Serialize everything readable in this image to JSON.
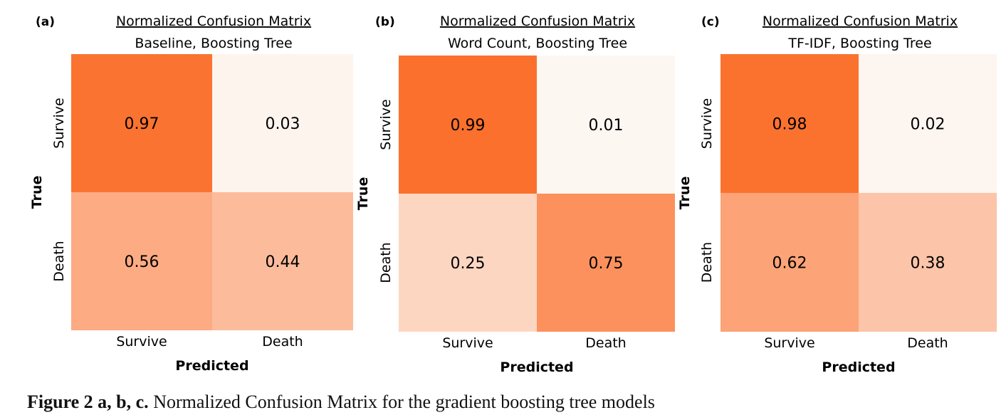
{
  "chart_data": [
    {
      "type": "heatmap",
      "panel": "(a)",
      "title": "Normalized Confusion Matrix",
      "subtitle": "Baseline, Boosting Tree",
      "xlabel": "Predicted",
      "ylabel": "True",
      "x_categories": [
        "Survive",
        "Death"
      ],
      "y_categories": [
        "Survive",
        "Death"
      ],
      "values": [
        [
          0.97,
          0.03
        ],
        [
          0.56,
          0.44
        ]
      ]
    },
    {
      "type": "heatmap",
      "panel": "(b)",
      "title": "Normalized Confusion Matrix",
      "subtitle": "Word Count, Boosting Tree",
      "xlabel": "Predicted",
      "ylabel": "True",
      "x_categories": [
        "Survive",
        "Death"
      ],
      "y_categories": [
        "Survive",
        "Death"
      ],
      "values": [
        [
          0.99,
          0.01
        ],
        [
          0.25,
          0.75
        ]
      ]
    },
    {
      "type": "heatmap",
      "panel": "(c)",
      "title": "Normalized Confusion Matrix",
      "subtitle": "TF-IDF, Boosting Tree",
      "xlabel": "Predicted",
      "ylabel": "True",
      "x_categories": [
        "Survive",
        "Death"
      ],
      "y_categories": [
        "Survive",
        "Death"
      ],
      "values": [
        [
          0.98,
          0.02
        ],
        [
          0.62,
          0.38
        ]
      ]
    }
  ],
  "colors": {
    "low": "#fdf8f4",
    "high": "#fb6f2b"
  },
  "caption": {
    "label": "Figure 2 a, b, c.",
    "text": " Normalized Confusion Matrix for the gradient boosting tree models"
  }
}
